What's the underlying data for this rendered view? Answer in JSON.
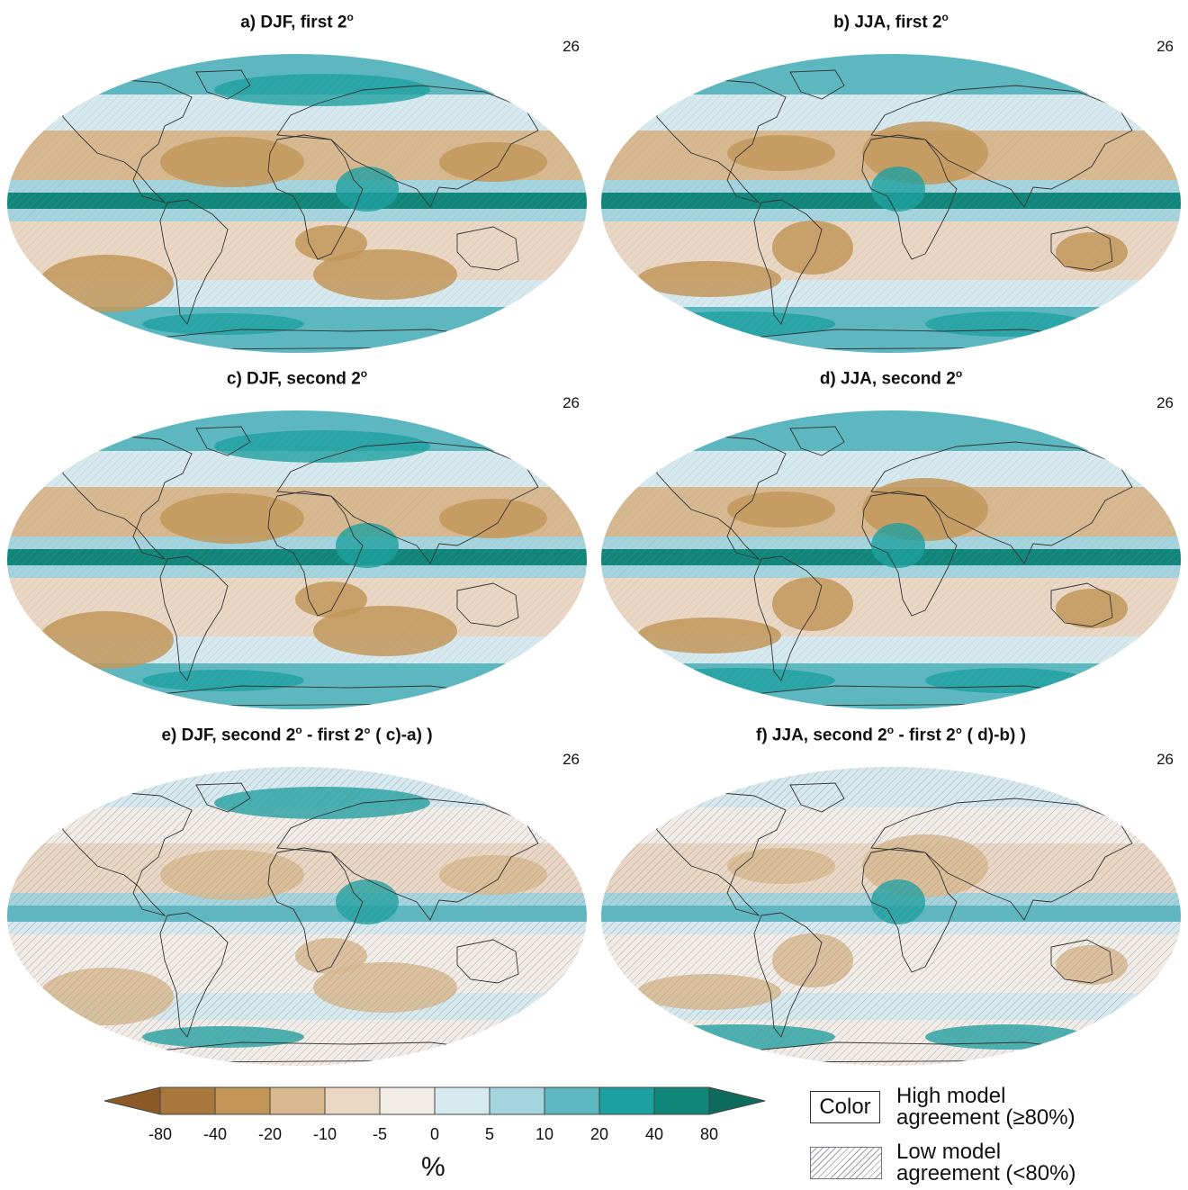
{
  "panels": [
    {
      "id": "a",
      "title": "a) DJF, first 2",
      "superscript": "o",
      "suffix": "",
      "count": "26",
      "variant": 0
    },
    {
      "id": "b",
      "title": "b) JJA, first 2",
      "superscript": "o",
      "suffix": "",
      "count": "26",
      "variant": 1
    },
    {
      "id": "c",
      "title": "c) DJF, second 2",
      "superscript": "o",
      "suffix": "",
      "count": "26",
      "variant": 0
    },
    {
      "id": "d",
      "title": "d) JJA, second 2",
      "superscript": "o",
      "suffix": "",
      "count": "26",
      "variant": 1
    },
    {
      "id": "e",
      "title": "e)  DJF, second 2",
      "superscript": "o",
      "suffix": " - first 2° ( c)-a) )",
      "count": "26",
      "variant": 2
    },
    {
      "id": "f",
      "title": "f)  JJA, second 2",
      "superscript": "o",
      "suffix": " - first 2° ( d)-b) )",
      "count": "26",
      "variant": 3
    }
  ],
  "colorbar": {
    "ticks": [
      "-80",
      "-40",
      "-20",
      "-10",
      "-5",
      "0",
      "5",
      "10",
      "20",
      "40",
      "80"
    ],
    "unit": "%",
    "colors": [
      "#8c5a26",
      "#a9773c",
      "#c39658",
      "#d8b88e",
      "#ead7c3",
      "#f2ece6",
      "#d6e9ef",
      "#a4d4dd",
      "#5bb8c1",
      "#1ca0a0",
      "#0f8679",
      "#0c6b5c"
    ]
  },
  "legend": {
    "color_box_label": "Color",
    "high_line1": "High model",
    "high_line2": "agreement (≥80%)",
    "low_line1": "Low model",
    "low_line2": "agreement (<80%)"
  }
}
